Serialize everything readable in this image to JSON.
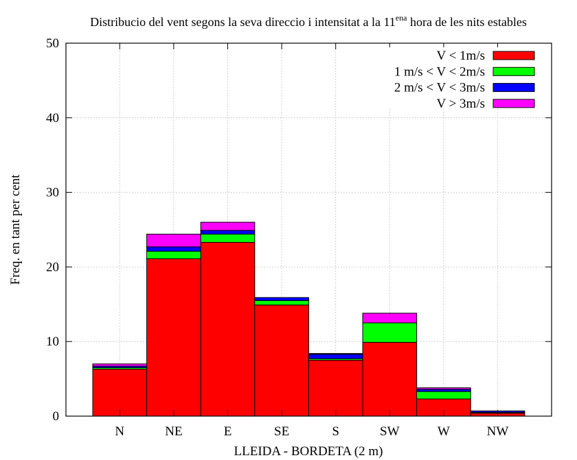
{
  "chart_data": {
    "type": "bar",
    "stacked": true,
    "title": {
      "before": "Distribucio del vent segons la seva direccio i intensitat a la 11",
      "sup": "ena",
      "after": " hora de les nits estables"
    },
    "xlabel": "LLEIDA - BORDETA (2 m)",
    "ylabel": "Freq. en tant per cent",
    "ylim": [
      0,
      50
    ],
    "yticks": [
      "0",
      "10",
      "20",
      "30",
      "40",
      "50"
    ],
    "grid": true,
    "legend_position": "top-right",
    "categories": [
      "N",
      "NE",
      "E",
      "SE",
      "S",
      "SW",
      "W",
      "NW"
    ],
    "series": [
      {
        "name": "V < 1m/s",
        "color": "#ff0000",
        "values": [
          6.3,
          21.1,
          23.3,
          14.9,
          7.5,
          9.9,
          2.3,
          0.4
        ]
      },
      {
        "name": "1 m/s < V < 2m/s",
        "color": "#00ff00",
        "values": [
          0.2,
          1.0,
          1.1,
          0.6,
          0.2,
          2.6,
          1.0,
          0.1
        ]
      },
      {
        "name": "2 m/s < V < 3m/s",
        "color": "#0000ff",
        "values": [
          0.2,
          0.6,
          0.5,
          0.4,
          0.6,
          0.0,
          0.3,
          0.2
        ]
      },
      {
        "name": "V > 3m/s",
        "color": "#ff00ff",
        "values": [
          0.3,
          1.7,
          1.1,
          0.0,
          0.1,
          1.3,
          0.2,
          0.0
        ]
      }
    ]
  }
}
